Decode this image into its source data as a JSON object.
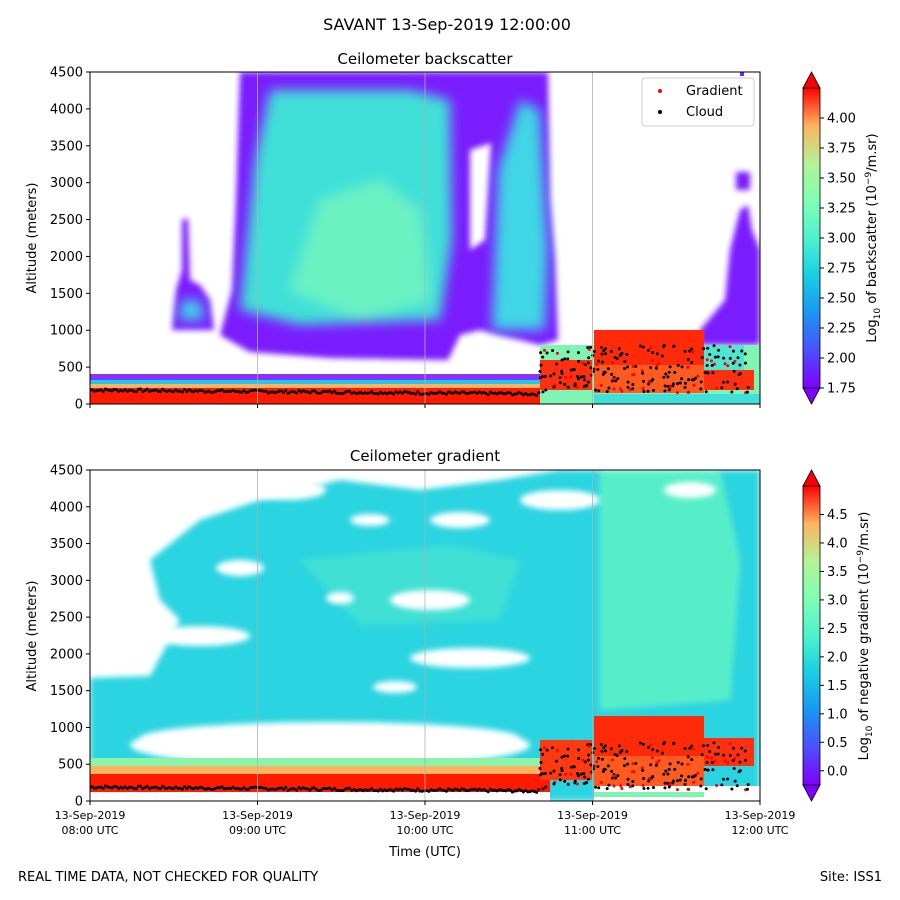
{
  "suptitle": "SAVANT 13-Sep-2019 12:00:00",
  "footer_left": "REAL TIME DATA, NOT CHECKED FOR QUALITY",
  "footer_right": "Site: ISS1",
  "colors": {
    "cloud": "#000000",
    "gradient": "#ff0000",
    "grid": "#b0b0b0"
  },
  "chart_data": [
    {
      "type": "heatmap",
      "title": "Ceilometer backscatter",
      "xlabel": "",
      "ylabel": "Altitude (meters)",
      "ylim": [
        0,
        4500
      ],
      "yticks": [
        "0",
        "500",
        "1000",
        "1500",
        "2000",
        "2500",
        "3000",
        "3500",
        "4000",
        "4500"
      ],
      "xlim": [
        "08:00",
        "12:00"
      ],
      "grid": "vertical at hourly ticks",
      "colormap": "rainbow",
      "colorbar": {
        "label": "Log10 of backscatter (10^-9/m.sr)",
        "label_parts": [
          "Log",
          "10",
          " of backscatter (10",
          "−9",
          "/m.sr)"
        ],
        "range": [
          1.75,
          4.25
        ],
        "ticks": [
          "1.75",
          "2.00",
          "2.25",
          "2.50",
          "2.75",
          "3.00",
          "3.25",
          "3.50",
          "3.75",
          "4.00"
        ]
      },
      "legend": {
        "placement": "top-right",
        "entries": [
          {
            "name": "Gradient",
            "color": "#ff0000"
          },
          {
            "name": "Cloud",
            "color": "#000000"
          }
        ]
      }
    },
    {
      "type": "heatmap",
      "title": "Ceilometer gradient",
      "xlabel": "Time (UTC)",
      "ylabel": "Altitude (meters)",
      "ylim": [
        0,
        4500
      ],
      "yticks": [
        "0",
        "500",
        "1000",
        "1500",
        "2000",
        "2500",
        "3000",
        "3500",
        "4000",
        "4500"
      ],
      "xticks": [
        {
          "date": "13-Sep-2019",
          "time": "08:00 UTC"
        },
        {
          "date": "13-Sep-2019",
          "time": "09:00 UTC"
        },
        {
          "date": "13-Sep-2019",
          "time": "10:00 UTC"
        },
        {
          "date": "13-Sep-2019",
          "time": "11:00 UTC"
        },
        {
          "date": "13-Sep-2019",
          "time": "12:00 UTC"
        }
      ],
      "xlim": [
        "08:00",
        "12:00"
      ],
      "grid": "vertical at hourly ticks",
      "colormap": "rainbow",
      "colorbar": {
        "label": "Log10 of negative gradient (10^-9/m.sr)",
        "label_parts": [
          "Log",
          "10",
          " of negative gradient (10",
          "−9",
          "/m.sr)"
        ],
        "range": [
          -0.25,
          5.0
        ],
        "ticks": [
          "0.0",
          "0.5",
          "1.0",
          "1.5",
          "2.0",
          "2.5",
          "3.0",
          "3.5",
          "4.0",
          "4.5"
        ]
      }
    }
  ]
}
